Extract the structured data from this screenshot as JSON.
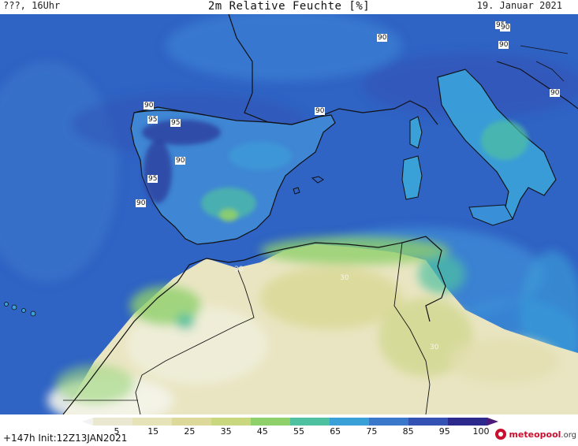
{
  "header": {
    "left": "???, 16Uhr",
    "title": "2m Relative Feuchte [%]",
    "date": "19. Januar 2021"
  },
  "map": {
    "region": "Iberia, Western Mediterranean, North Africa",
    "contour_labels": [
      "90",
      "95",
      "95",
      "95",
      "90",
      "90",
      "90",
      "95",
      "90",
      "95",
      "90",
      "90",
      "90",
      "30",
      "30",
      "30"
    ],
    "colors": {
      "sea": "#2f63c4",
      "land_humid": "#3f8ad6",
      "sahara": "#eeeacc",
      "coast": "#111111"
    }
  },
  "legend": {
    "ticks": [
      "5",
      "15",
      "25",
      "35",
      "45",
      "55",
      "65",
      "75",
      "85",
      "95",
      "100"
    ],
    "colors": [
      "#f2f2f2",
      "#ebe8d2",
      "#e7e3b8",
      "#dcd99a",
      "#c9d77e",
      "#8fd06a",
      "#4fc0a0",
      "#3aa0d8",
      "#3a78cc",
      "#3352b4",
      "#2b2a8c",
      "#4b1a7a"
    ]
  },
  "footer": {
    "run": "+147h Init:12Z13JAN2021",
    "logo_main": "meteopool",
    "logo_tld": ".org"
  }
}
